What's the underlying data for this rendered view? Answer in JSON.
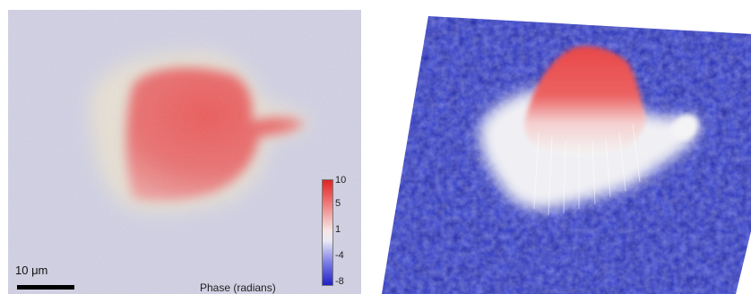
{
  "left_panel": {
    "scale_bar_label": "10 μm",
    "colorbar": {
      "title": "Phase (radians)",
      "ticks": [
        "10",
        "5",
        "1",
        "-4",
        "-8"
      ],
      "colors": {
        "max": "#e02424",
        "mid": "#f6f0f0",
        "min": "#2020c8"
      }
    }
  },
  "right_panel": {
    "surface_colors": {
      "base": "#3b48d8",
      "peak": "#e84a4a",
      "transition": "#f0f0f0"
    }
  }
}
